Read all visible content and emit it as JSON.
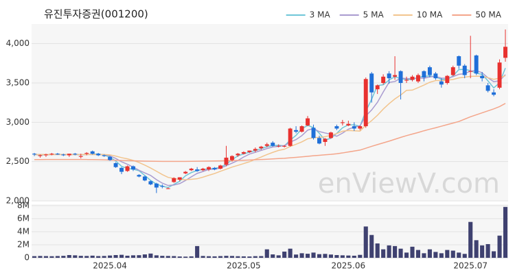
{
  "chart_data": [
    {
      "type": "candlestick",
      "title": "유진투자증권(001200)",
      "watermark": "enViewV.com",
      "up_color": "#e8312f",
      "down_color": "#1f6fd8",
      "grid": true,
      "legend": "top-right",
      "ylim": [
        2000,
        4250
      ],
      "yticks": [
        {
          "value": 2000,
          "label": "2,000"
        },
        {
          "value": 2500,
          "label": "2,500"
        },
        {
          "value": 3000,
          "label": "3,000"
        },
        {
          "value": 3500,
          "label": "3,500"
        },
        {
          "value": 4000,
          "label": "4,000"
        }
      ],
      "ohlc": [
        [
          2600,
          2610,
          2570,
          2590
        ],
        [
          2570,
          2590,
          2550,
          2580
        ],
        [
          2580,
          2600,
          2560,
          2590
        ],
        [
          2590,
          2610,
          2580,
          2600
        ],
        [
          2600,
          2610,
          2585,
          2590
        ],
        [
          2590,
          2600,
          2570,
          2580
        ],
        [
          2580,
          2600,
          2560,
          2600
        ],
        [
          2600,
          2610,
          2580,
          2590
        ],
        [
          2560,
          2600,
          2540,
          2570
        ],
        [
          2600,
          2620,
          2580,
          2610
        ],
        [
          2630,
          2640,
          2590,
          2600
        ],
        [
          2600,
          2610,
          2570,
          2580
        ],
        [
          2580,
          2590,
          2560,
          2570
        ],
        [
          2560,
          2570,
          2510,
          2520
        ],
        [
          2480,
          2490,
          2420,
          2430
        ],
        [
          2420,
          2430,
          2340,
          2370
        ],
        [
          2380,
          2450,
          2370,
          2440
        ],
        [
          2440,
          2450,
          2380,
          2400
        ],
        [
          2330,
          2340,
          2300,
          2310
        ],
        [
          2310,
          2320,
          2250,
          2260
        ],
        [
          2250,
          2260,
          2200,
          2210
        ],
        [
          2220,
          2230,
          2100,
          2170
        ],
        [
          2190,
          2210,
          2160,
          2180
        ],
        [
          2160,
          2170,
          2150,
          2160
        ],
        [
          2240,
          2300,
          2230,
          2290
        ],
        [
          2270,
          2300,
          2250,
          2300
        ],
        [
          2350,
          2380,
          2340,
          2370
        ],
        [
          2390,
          2420,
          2380,
          2410
        ],
        [
          2400,
          2430,
          2370,
          2380
        ],
        [
          2390,
          2420,
          2380,
          2410
        ],
        [
          2400,
          2440,
          2380,
          2430
        ],
        [
          2420,
          2430,
          2390,
          2400
        ],
        [
          2410,
          2460,
          2400,
          2450
        ],
        [
          2460,
          2700,
          2440,
          2550
        ],
        [
          2520,
          2580,
          2500,
          2570
        ],
        [
          2580,
          2610,
          2560,
          2600
        ],
        [
          2600,
          2630,
          2590,
          2620
        ],
        [
          2620,
          2640,
          2610,
          2640
        ],
        [
          2640,
          2680,
          2620,
          2660
        ],
        [
          2670,
          2700,
          2650,
          2690
        ],
        [
          2700,
          2740,
          2680,
          2720
        ],
        [
          2740,
          2760,
          2690,
          2700
        ],
        [
          2700,
          2720,
          2680,
          2700
        ],
        [
          2690,
          2710,
          2680,
          2700
        ],
        [
          2700,
          2930,
          2690,
          2920
        ],
        [
          2900,
          2950,
          2860,
          2880
        ],
        [
          2880,
          2960,
          2870,
          2950
        ],
        [
          2960,
          3080,
          2950,
          3050
        ],
        [
          2930,
          2970,
          2780,
          2800
        ],
        [
          2800,
          2830,
          2720,
          2730
        ],
        [
          2750,
          2800,
          2700,
          2790
        ],
        [
          2800,
          2880,
          2790,
          2870
        ],
        [
          2950,
          2970,
          2900,
          2920
        ],
        [
          2990,
          3030,
          2960,
          3000
        ],
        [
          2960,
          3020,
          2950,
          2980
        ],
        [
          2950,
          3000,
          2890,
          2920
        ],
        [
          2920,
          2960,
          2900,
          2950
        ],
        [
          2950,
          3570,
          2930,
          3550
        ],
        [
          3620,
          3640,
          3250,
          3380
        ],
        [
          3420,
          3480,
          3360,
          3470
        ],
        [
          3500,
          3610,
          3480,
          3580
        ],
        [
          3620,
          3650,
          3490,
          3560
        ],
        [
          3580,
          3840,
          3540,
          3600
        ],
        [
          3650,
          3660,
          3290,
          3500
        ],
        [
          3530,
          3580,
          3500,
          3540
        ],
        [
          3540,
          3600,
          3520,
          3580
        ],
        [
          3520,
          3620,
          3500,
          3600
        ],
        [
          3650,
          3660,
          3520,
          3570
        ],
        [
          3700,
          3720,
          3570,
          3600
        ],
        [
          3620,
          3640,
          3540,
          3560
        ],
        [
          3520,
          3560,
          3440,
          3480
        ],
        [
          3500,
          3600,
          3480,
          3590
        ],
        [
          3600,
          3720,
          3590,
          3700
        ],
        [
          3840,
          3850,
          3680,
          3720
        ],
        [
          3720,
          3740,
          3560,
          3600
        ],
        [
          3650,
          4100,
          3560,
          3650
        ],
        [
          3850,
          3860,
          3600,
          3620
        ],
        [
          3590,
          3640,
          3520,
          3560
        ],
        [
          3470,
          3500,
          3380,
          3400
        ],
        [
          3380,
          3420,
          3330,
          3350
        ],
        [
          3440,
          3800,
          3420,
          3760
        ],
        [
          3820,
          4180,
          3770,
          3960
        ]
      ],
      "series": [
        {
          "name": "3 MA",
          "color": "#6ec6d8",
          "values": [
            2590,
            2585,
            2587,
            2590,
            2593,
            2590,
            2590,
            2590,
            2587,
            2590,
            2593,
            2597,
            2583,
            2557,
            2507,
            2440,
            2413,
            2403,
            2383,
            2323,
            2260,
            2213,
            2187,
            2170,
            2210,
            2250,
            2320,
            2360,
            2387,
            2400,
            2407,
            2413,
            2427,
            2467,
            2523,
            2573,
            2597,
            2620,
            2640,
            2663,
            2690,
            2703,
            2707,
            2700,
            2773,
            2833,
            2917,
            2960,
            2933,
            2860,
            2773,
            2797,
            2860,
            2930,
            2967,
            2967,
            2950,
            3140,
            3293,
            3467,
            3477,
            3537,
            3580,
            3553,
            3547,
            3540,
            3573,
            3583,
            3590,
            3577,
            3547,
            3543,
            3590,
            3670,
            3673,
            3657,
            3623,
            3610,
            3527,
            3437,
            3503,
            3690
          ]
        },
        {
          "name": "5 MA",
          "color": "#a99bd0",
          "values": [
            2590,
            2590,
            2590,
            2590,
            2590,
            2590,
            2590,
            2590,
            2590,
            2590,
            2590,
            2590,
            2590,
            2572,
            2540,
            2498,
            2466,
            2430,
            2390,
            2356,
            2324,
            2270,
            2226,
            2196,
            2202,
            2220,
            2260,
            2306,
            2350,
            2374,
            2400,
            2406,
            2416,
            2448,
            2480,
            2514,
            2558,
            2596,
            2618,
            2642,
            2666,
            2686,
            2694,
            2702,
            2748,
            2780,
            2830,
            2900,
            2920,
            2882,
            2864,
            2848,
            2822,
            2862,
            2912,
            2938,
            2954,
            3080,
            3156,
            3254,
            3386,
            3508,
            3518,
            3562,
            3556,
            3556,
            3564,
            3558,
            3578,
            3582,
            3562,
            3560,
            3580,
            3610,
            3618,
            3652,
            3658,
            3630,
            3566,
            3516,
            3528,
            3606
          ]
        },
        {
          "name": "10 MA",
          "color": "#f2c48d",
          "values": [
            2590,
            2590,
            2590,
            2590,
            2590,
            2590,
            2590,
            2590,
            2590,
            2590,
            2590,
            2590,
            2590,
            2585,
            2570,
            2550,
            2535,
            2515,
            2488,
            2455,
            2418,
            2377,
            2335,
            2299,
            2285,
            2272,
            2269,
            2275,
            2282,
            2302,
            2326,
            2348,
            2377,
            2403,
            2430,
            2452,
            2475,
            2498,
            2529,
            2558,
            2589,
            2617,
            2642,
            2657,
            2693,
            2720,
            2751,
            2790,
            2804,
            2808,
            2817,
            2834,
            2856,
            2886,
            2895,
            2892,
            2888,
            2963,
            3021,
            3089,
            3168,
            3237,
            3297,
            3347,
            3406,
            3409,
            3441,
            3473,
            3509,
            3530,
            3532,
            3535,
            3545,
            3564,
            3574,
            3584,
            3586,
            3585,
            3567,
            3546,
            3562,
            3593
          ]
        },
        {
          "name": "50 MA",
          "color": "#f4a58a",
          "values": [
            2525,
            2525,
            2526,
            2526,
            2527,
            2527,
            2527,
            2527,
            2526,
            2526,
            2525,
            2524,
            2522,
            2520,
            2517,
            2514,
            2512,
            2510,
            2508,
            2506,
            2505,
            2504,
            2503,
            2502,
            2502,
            2502,
            2503,
            2504,
            2505,
            2506,
            2507,
            2508,
            2509,
            2511,
            2513,
            2515,
            2517,
            2520,
            2523,
            2526,
            2530,
            2534,
            2538,
            2542,
            2548,
            2554,
            2560,
            2567,
            2574,
            2580,
            2586,
            2592,
            2600,
            2610,
            2622,
            2634,
            2646,
            2670,
            2694,
            2716,
            2738,
            2760,
            2784,
            2808,
            2830,
            2850,
            2870,
            2892,
            2912,
            2930,
            2950,
            2970,
            2990,
            3010,
            3040,
            3070,
            3095,
            3120,
            3145,
            3170,
            3200,
            3240
          ]
        }
      ]
    },
    {
      "type": "bar",
      "color": "#3f4170",
      "ylim": [
        0,
        8200000
      ],
      "yticks": [
        0,
        {
          "value": 2000000,
          "label": "2M"
        },
        {
          "value": 4000000,
          "label": "4M"
        },
        {
          "value": 6000000,
          "label": "6M"
        },
        {
          "value": 8000000,
          "label": "8M"
        }
      ],
      "categories": [
        null,
        null,
        null,
        null,
        null,
        null,
        null,
        null,
        null,
        null,
        null,
        null,
        null,
        "2025.04",
        null,
        null,
        null,
        null,
        null,
        null,
        null,
        null,
        null,
        null,
        null,
        null,
        null,
        null,
        null,
        null,
        null,
        null,
        null,
        null,
        null,
        null,
        "2025.05",
        null,
        null,
        null,
        null,
        null,
        null,
        null,
        null,
        null,
        null,
        null,
        null,
        null,
        null,
        null,
        null,
        null,
        "2025.06",
        null,
        null,
        null,
        null,
        null,
        null,
        null,
        null,
        null,
        null,
        null,
        null,
        null,
        null,
        null,
        null,
        null,
        null,
        null,
        null,
        "2025.07",
        null,
        null,
        null,
        null,
        null,
        null
      ],
      "values": [
        250000,
        280000,
        260000,
        240000,
        270000,
        300000,
        420000,
        380000,
        300000,
        280000,
        330000,
        260000,
        280000,
        350000,
        420000,
        460000,
        320000,
        380000,
        400000,
        520000,
        650000,
        380000,
        300000,
        280000,
        260000,
        200000,
        180000,
        220000,
        1800000,
        280000,
        240000,
        220000,
        260000,
        300000,
        280000,
        240000,
        220000,
        200000,
        250000,
        260000,
        1300000,
        520000,
        380000,
        950000,
        1400000,
        500000,
        700000,
        620000,
        800000,
        560000,
        600000,
        500000,
        420000,
        380000,
        350000,
        320000,
        450000,
        4800000,
        3500000,
        2200000,
        1300000,
        1900000,
        1800000,
        1400000,
        800000,
        1700000,
        1200000,
        700000,
        1300000,
        900000,
        700000,
        1200000,
        1100000,
        800000,
        600000,
        5500000,
        2700000,
        1900000,
        2100000,
        1000000,
        3400000,
        7800000
      ]
    }
  ]
}
